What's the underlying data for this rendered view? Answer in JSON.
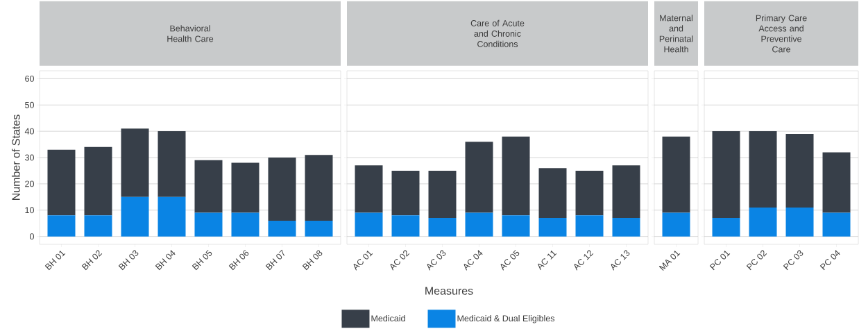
{
  "chart_data": [
    {
      "type": "bar",
      "stacked": true,
      "title": "Behavioral Health Care",
      "ylabel": "Number of States",
      "grid": "y",
      "ylim": [
        -3,
        63
      ],
      "yticks": [
        0,
        10,
        20,
        30,
        40,
        50,
        60
      ],
      "categories": [
        "BH 01",
        "BH 02",
        "BH 03",
        "BH 04",
        "BH 05",
        "BH 06",
        "BH 07",
        "BH 08"
      ],
      "series": [
        {
          "color": "#0a84e4",
          "values": [
            8,
            8,
            15,
            15,
            9,
            9,
            6,
            6
          ]
        },
        {
          "color": "#373f49",
          "values": [
            25,
            26,
            26,
            25,
            20,
            19,
            24,
            25
          ]
        }
      ]
    },
    {
      "type": "bar",
      "stacked": true,
      "title": "Care of Acute and Chronic Conditions",
      "xlabel": "Measures",
      "legend": "bottom",
      "tick_labels": "x",
      "grid": "y",
      "ylim": [
        -3,
        63
      ],
      "yticks": [
        0,
        10,
        20,
        30,
        40,
        50,
        60
      ],
      "categories": [
        "AC 01",
        "AC 02",
        "AC 03",
        "AC 04",
        "AC 05",
        "AC 11",
        "AC 12",
        "AC 13"
      ],
      "series": [
        {
          "name": "Medicaid & Dual Eligibles",
          "color": "#0a84e4",
          "values": [
            9,
            8,
            7,
            9,
            8,
            7,
            8,
            7
          ]
        },
        {
          "name": "Medicaid",
          "color": "#373f49",
          "values": [
            18,
            17,
            18,
            27,
            30,
            19,
            17,
            20
          ]
        }
      ]
    },
    {
      "type": "bar",
      "stacked": true,
      "title": "Maternal and Perinatal Health",
      "tick_labels": "x",
      "grid": "y",
      "ylim": [
        -3,
        63
      ],
      "yticks": [
        0,
        10,
        20,
        30,
        40,
        50,
        60
      ],
      "categories": [
        "MA 01"
      ],
      "series": [
        {
          "color": "#0a84e4",
          "values": [
            9
          ]
        },
        {
          "color": "#373f49",
          "values": [
            29
          ]
        }
      ]
    },
    {
      "type": "bar",
      "stacked": true,
      "title": "Primary Care Access and Preventive Care",
      "tick_labels": "x",
      "grid": "y",
      "ylim": [
        -3,
        63
      ],
      "yticks": [
        0,
        10,
        20,
        30,
        40,
        50,
        60
      ],
      "categories": [
        "PC 01",
        "PC 02",
        "PC 03",
        "PC 04"
      ],
      "series": [
        {
          "color": "#0a84e4",
          "values": [
            7,
            11,
            11,
            9
          ]
        },
        {
          "color": "#373f49",
          "values": [
            33,
            29,
            28,
            23
          ]
        }
      ]
    }
  ]
}
